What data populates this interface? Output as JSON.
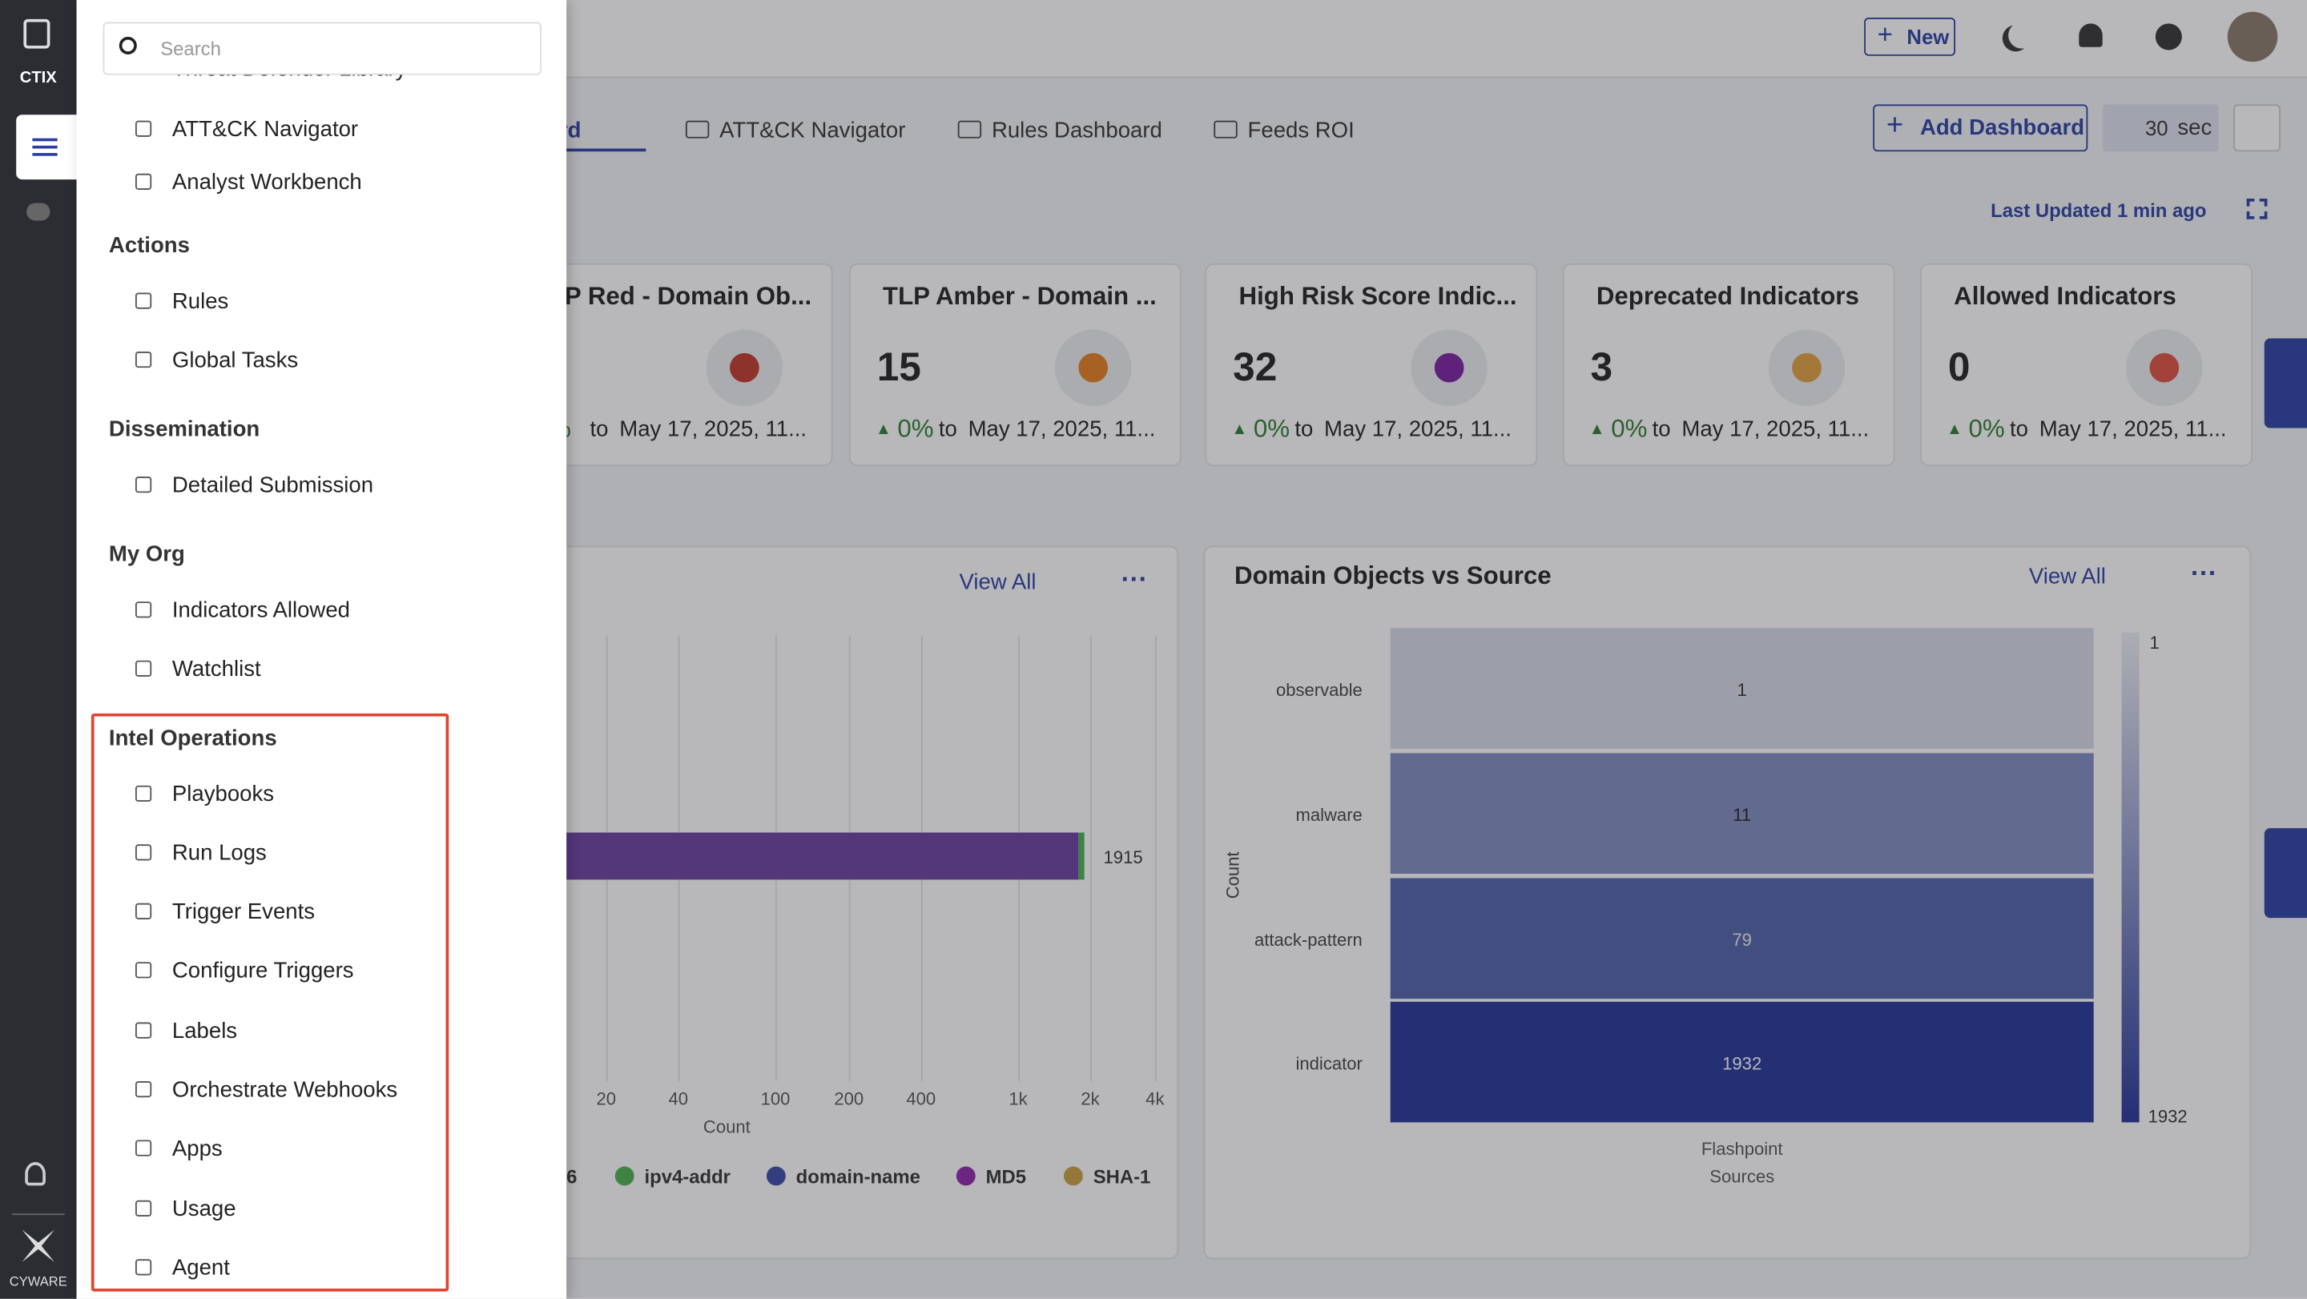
{
  "rail": {
    "logo": "CTIX",
    "footer": "CYWARE"
  },
  "menu": {
    "search": "Search",
    "partial": "Threat Defender Library",
    "items": [
      "ATT&CK Navigator",
      "Analyst Workbench"
    ],
    "sections": [
      {
        "title": "Actions",
        "items": [
          "Rules",
          "Global Tasks"
        ]
      },
      {
        "title": "Dissemination",
        "items": [
          "Detailed Submission"
        ]
      },
      {
        "title": "My Org",
        "items": [
          "Indicators Allowed",
          "Watchlist"
        ]
      },
      {
        "title": "Intel Operations",
        "items": [
          "Playbooks",
          "Run Logs",
          "Trigger Events",
          "Configure Triggers",
          "Labels",
          "Orchestrate Webhooks",
          "Apps",
          "Usage",
          "Agent"
        ]
      }
    ]
  },
  "topbar": {
    "new": "New"
  },
  "tabs": [
    "rd",
    "ATT&CK Navigator",
    "Rules Dashboard",
    "Feeds ROI"
  ],
  "toolbar": {
    "add": "Add Dashboard",
    "interval": "30",
    "unit": "sec",
    "updated": "Last Updated 1 min ago"
  },
  "cards": [
    {
      "title": "TLP Red - Domain Ob...",
      "change": "%",
      "to": "to",
      "date": "May 17, 2025, 11..."
    },
    {
      "title": "TLP Amber - Domain ...",
      "value": "15",
      "change": "0%",
      "to": "to",
      "date": "May 17, 2025, 11..."
    },
    {
      "title": "High Risk Score Indic...",
      "value": "32",
      "change": "0%",
      "to": "to",
      "date": "May 17, 2025, 11..."
    },
    {
      "title": "Deprecated Indicators",
      "value": "3",
      "change": "0%",
      "to": "to",
      "date": "May 17, 2025, 11..."
    },
    {
      "title": "Allowed Indicators",
      "value": "0",
      "change": "0%",
      "to": "to",
      "date": "May 17, 2025, 11..."
    }
  ],
  "left_chart": {
    "view_all": "View All",
    "ticks": [
      "20",
      "40",
      "100",
      "200",
      "400",
      "1k",
      "2k",
      "4k"
    ],
    "x_label": "Count",
    "bar_label": "1915",
    "legend": [
      "6",
      "ipv4-addr",
      "domain-name",
      "MD5",
      "SHA-1"
    ]
  },
  "right_chart": {
    "title": "Domain Objects vs Source",
    "view_all": "View All",
    "rows": [
      {
        "label": "observable",
        "value": "1"
      },
      {
        "label": "malware",
        "value": "11"
      },
      {
        "label": "attack-pattern",
        "value": "79"
      },
      {
        "label": "indicator",
        "value": "1932"
      }
    ],
    "y_label": "Count",
    "x_label": "Flashpoint",
    "x_sub": "Sources",
    "scale_min": "1",
    "scale_max": "1932"
  }
}
